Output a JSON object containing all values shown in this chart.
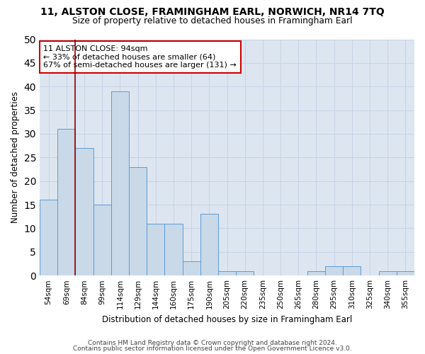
{
  "title1": "11, ALSTON CLOSE, FRAMINGHAM EARL, NORWICH, NR14 7TQ",
  "title2": "Size of property relative to detached houses in Framingham Earl",
  "xlabel": "Distribution of detached houses by size in Framingham Earl",
  "ylabel": "Number of detached properties",
  "categories": [
    "54sqm",
    "69sqm",
    "84sqm",
    "99sqm",
    "114sqm",
    "129sqm",
    "144sqm",
    "160sqm",
    "175sqm",
    "190sqm",
    "205sqm",
    "220sqm",
    "235sqm",
    "250sqm",
    "265sqm",
    "280sqm",
    "295sqm",
    "310sqm",
    "325sqm",
    "340sqm",
    "355sqm"
  ],
  "values": [
    16,
    31,
    27,
    15,
    39,
    23,
    11,
    11,
    3,
    13,
    1,
    1,
    0,
    0,
    0,
    1,
    2,
    2,
    0,
    1,
    1
  ],
  "bar_color": "#c9d9e8",
  "bar_edge_color": "#5b9bd5",
  "annotation_line1": "11 ALSTON CLOSE: 94sqm",
  "annotation_line2": "← 33% of detached houses are smaller (64)",
  "annotation_line3": "67% of semi-detached houses are larger (131) →",
  "annotation_box_color": "white",
  "annotation_box_edge": "#cc0000",
  "vline_color": "#8B0000",
  "vline_x": 0.5,
  "footer1": "Contains HM Land Registry data © Crown copyright and database right 2024.",
  "footer2": "Contains public sector information licensed under the Open Government Licence v3.0.",
  "ylim": [
    0,
    50
  ],
  "yticks": [
    0,
    5,
    10,
    15,
    20,
    25,
    30,
    35,
    40,
    45,
    50
  ],
  "grid_color": "#c8d4e8",
  "bg_color": "#dde6f0"
}
